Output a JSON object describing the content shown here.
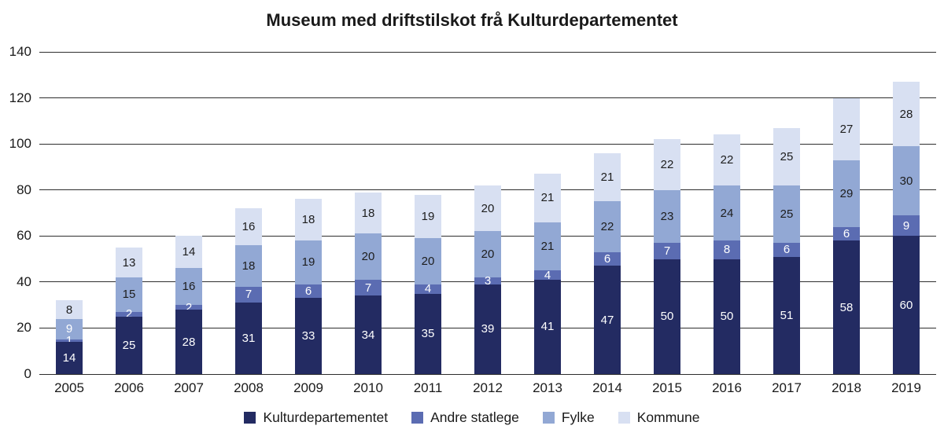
{
  "title": "Museum med driftstilskot frå Kulturdepartementet",
  "chart_data": {
    "type": "bar",
    "stacked": true,
    "title": "Museum med driftstilskot frå Kulturdepartementet",
    "categories": [
      "2005",
      "2006",
      "2007",
      "2008",
      "2009",
      "2010",
      "2011",
      "2012",
      "2013",
      "2014",
      "2015",
      "2016",
      "2017",
      "2018",
      "2019"
    ],
    "series": [
      {
        "name": "Kulturdepartementet",
        "color": "#232b62",
        "label_color": "#ffffff",
        "values": [
          14,
          25,
          28,
          31,
          33,
          34,
          35,
          39,
          41,
          47,
          50,
          50,
          51,
          58,
          60
        ]
      },
      {
        "name": "Andre statlege",
        "color": "#5b6cb2",
        "label_color": "#ffffff",
        "values": [
          1,
          2,
          2,
          7,
          6,
          7,
          4,
          3,
          4,
          6,
          7,
          8,
          6,
          6,
          9
        ]
      },
      {
        "name": "Fylke",
        "color": "#92a8d4",
        "label_color": "#1d1d1d",
        "values": [
          9,
          15,
          16,
          18,
          19,
          20,
          20,
          20,
          21,
          22,
          23,
          24,
          25,
          29,
          30
        ]
      },
      {
        "name": "Kommune",
        "color": "#d8e0f2",
        "label_color": "#1d1d1d",
        "values": [
          8,
          13,
          14,
          16,
          18,
          18,
          19,
          20,
          21,
          21,
          22,
          22,
          25,
          27,
          28
        ]
      }
    ],
    "label_overrides": [
      {
        "category": "2005",
        "series": "Fylke",
        "color": "#ffffff"
      }
    ],
    "ylim": [
      0,
      140
    ],
    "ytick_step": 20,
    "yticks": [
      "0",
      "20",
      "40",
      "60",
      "80",
      "100",
      "120",
      "140"
    ],
    "xlabel": "",
    "ylabel": "",
    "grid": true,
    "legend_position": "bottom"
  }
}
